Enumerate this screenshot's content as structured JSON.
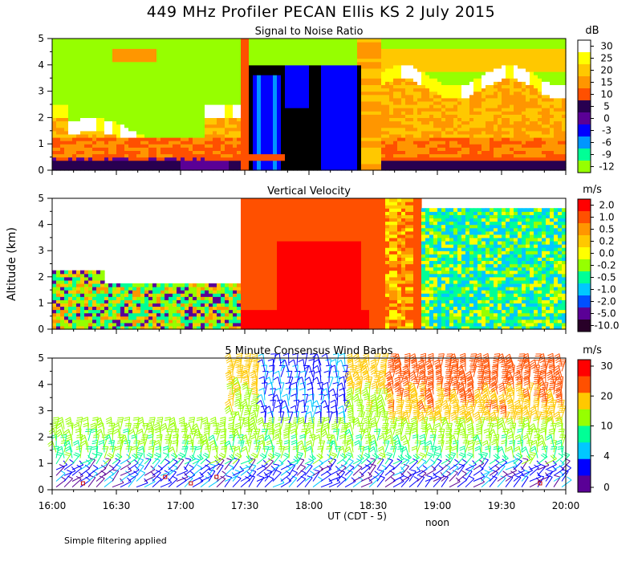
{
  "title": "449 MHz Profiler PECAN Ellis KS  2 July 2015",
  "footnote": "Simple filtering applied",
  "chart_data": [
    {
      "type": "heatmap",
      "title": "Signal to Noise Ratio",
      "unit": "dB",
      "ylabel": "Altitude (km)",
      "ylim": [
        0,
        5
      ],
      "yticks": [
        "0",
        "1",
        "2",
        "3",
        "4",
        "5"
      ],
      "xlim": [
        "16:00",
        "20:00"
      ],
      "colorbar": {
        "labels": [
          "30",
          "25",
          "20",
          "15",
          "10",
          "5",
          "0",
          "-3",
          "-6",
          "-9",
          "-12"
        ],
        "colors": [
          "#ffffff",
          "#ffff00",
          "#ffc800",
          "#ff9600",
          "#ff5000",
          "#280050",
          "#5a0096",
          "#0000ff",
          "#0096ff",
          "#00ff96",
          "#96ff00"
        ]
      }
    },
    {
      "type": "heatmap",
      "title": "Vertical Velocity",
      "unit": "m/s",
      "ylabel": "Altitude (km)",
      "ylim": [
        0,
        5
      ],
      "yticks": [
        "0",
        "1",
        "2",
        "3",
        "4",
        "5"
      ],
      "xlim": [
        "16:00",
        "20:00"
      ],
      "colorbar": {
        "labels": [
          "2.0",
          "1.0",
          "0.5",
          "0.2",
          "0.0",
          "-0.2",
          "-0.5",
          "-1.0",
          "-2.0",
          "-5.0",
          "-10.0"
        ],
        "colors": [
          "#ff0000",
          "#ff5000",
          "#ff9600",
          "#ffc800",
          "#ffff00",
          "#96ff00",
          "#00ff96",
          "#00c8ff",
          "#0050ff",
          "#5a0096",
          "#280028"
        ]
      }
    },
    {
      "type": "scatter",
      "title": "5 Minute Consensus Wind Barbs",
      "unit": "m/s",
      "ylabel": "Altitude (km)",
      "ylim": [
        0,
        5
      ],
      "yticks": [
        "0",
        "1",
        "2",
        "3",
        "4",
        "5"
      ],
      "xlim": [
        "16:00",
        "20:00"
      ],
      "colorbar": {
        "labels": [
          "30",
          "20",
          "10",
          "4",
          "0"
        ],
        "colors": [
          "#ff0000",
          "#ff5000",
          "#ffc800",
          "#96ff00",
          "#00ff96",
          "#00c8ff",
          "#0000ff",
          "#5a0096"
        ]
      }
    }
  ],
  "xaxis": {
    "ticks": [
      "16:00",
      "16:30",
      "17:00",
      "17:30",
      "18:00",
      "18:30",
      "19:00",
      "19:30",
      "20:00"
    ],
    "label": "UT  (CDT - 5)",
    "noon_label": "noon",
    "noon_tick": "19:00"
  }
}
